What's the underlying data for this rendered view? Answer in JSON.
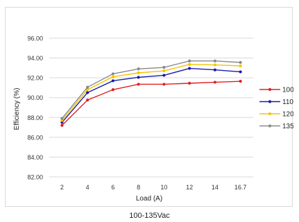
{
  "chart_data": {
    "type": "line",
    "categories": [
      "2",
      "4",
      "6",
      "8",
      "10",
      "12",
      "14",
      "16.7"
    ],
    "series": [
      {
        "name": "100",
        "color": "#e02020",
        "values": [
          87.2,
          89.75,
          90.8,
          91.35,
          91.35,
          91.45,
          91.55,
          91.65
        ]
      },
      {
        "name": "110",
        "color": "#1a1aa8",
        "values": [
          87.5,
          90.5,
          91.7,
          92.05,
          92.25,
          92.95,
          92.8,
          92.6
        ]
      },
      {
        "name": "120",
        "color": "#f2c500",
        "values": [
          87.7,
          90.8,
          92.1,
          92.5,
          92.7,
          93.35,
          93.3,
          93.2
        ]
      },
      {
        "name": "135",
        "color": "#8a8a8a",
        "values": [
          87.9,
          91.05,
          92.4,
          92.9,
          93.05,
          93.7,
          93.7,
          93.55
        ]
      }
    ],
    "yticks": [
      "82.00",
      "84.00",
      "86.00",
      "88.00",
      "90.00",
      "92.00",
      "94.00",
      "96.00"
    ],
    "ylim": [
      82,
      96
    ],
    "xlabel": "Load (A)",
    "ylabel": "Efficiency (%)",
    "legend_position": "right",
    "grid": true
  },
  "caption": "100-135Vac"
}
